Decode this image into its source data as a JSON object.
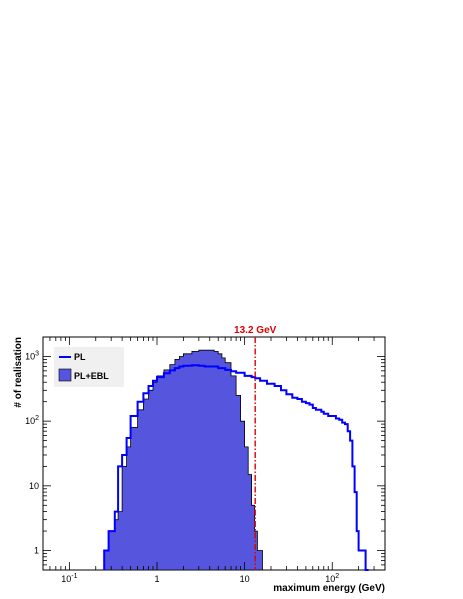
{
  "chart_data": {
    "type": "histogram",
    "title": "",
    "xlabel": "maximum energy (GeV)",
    "ylabel": "# of realisation",
    "xscale": "log",
    "yscale": "log",
    "xlim": [
      0.05,
      400
    ],
    "ylim": [
      0.5,
      2000
    ],
    "x_ticks": [
      {
        "value": 0.1,
        "label": "10",
        "exp": "-1"
      },
      {
        "value": 1,
        "label": "1",
        "exp": ""
      },
      {
        "value": 10,
        "label": "10",
        "exp": ""
      },
      {
        "value": 100,
        "label": "10",
        "exp": "2"
      }
    ],
    "y_ticks": [
      {
        "value": 1,
        "label": "1",
        "exp": ""
      },
      {
        "value": 10,
        "label": "10",
        "exp": ""
      },
      {
        "value": 100,
        "label": "10",
        "exp": "2"
      },
      {
        "value": 1000,
        "label": "10",
        "exp": "3"
      }
    ],
    "marker": {
      "x": 13.2,
      "label": "13.2 GeV",
      "color": "#dd0000",
      "style": "dash-dot"
    },
    "legend": {
      "placement": "top-left"
    },
    "series": [
      {
        "name": "PL",
        "style": "line",
        "color": "#0000ff",
        "x": [
          0.25,
          0.28,
          0.33,
          0.36,
          0.4,
          0.45,
          0.5,
          0.6,
          0.7,
          0.8,
          0.9,
          1.0,
          1.2,
          1.4,
          1.6,
          1.8,
          2.0,
          2.5,
          3.0,
          3.5,
          4.0,
          5.0,
          6.0,
          7.0,
          8.0,
          10,
          12,
          13.2,
          15,
          18,
          22,
          26,
          30,
          35,
          40,
          45,
          50,
          55,
          60,
          65,
          70,
          75,
          80,
          90,
          100,
          110,
          120,
          130,
          140,
          150,
          160,
          170,
          180,
          190,
          200,
          210,
          220,
          240
        ],
        "y": [
          1,
          2,
          4,
          20,
          30,
          55,
          120,
          200,
          270,
          350,
          420,
          480,
          550,
          610,
          660,
          700,
          720,
          730,
          720,
          700,
          700,
          660,
          620,
          590,
          560,
          500,
          480,
          460,
          420,
          380,
          350,
          300,
          260,
          230,
          220,
          200,
          190,
          180,
          160,
          150,
          150,
          140,
          130,
          120,
          120,
          110,
          105,
          95,
          90,
          70,
          50,
          20,
          8,
          2,
          1,
          1,
          1,
          0.5
        ]
      },
      {
        "name": "PL+EBL",
        "style": "filled",
        "color": "#5555dd",
        "x": [
          0.25,
          0.28,
          0.33,
          0.36,
          0.4,
          0.45,
          0.5,
          0.6,
          0.7,
          0.8,
          0.9,
          1.0,
          1.2,
          1.4,
          1.6,
          1.8,
          2.0,
          2.5,
          3.0,
          3.5,
          4.0,
          4.5,
          5.0,
          5.5,
          6.0,
          7.0,
          8.0,
          9.0,
          10,
          11,
          12,
          13,
          14,
          15,
          16
        ],
        "y": [
          1,
          2,
          3,
          4,
          20,
          40,
          80,
          150,
          220,
          300,
          400,
          500,
          620,
          750,
          900,
          1000,
          1100,
          1200,
          1250,
          1250,
          1250,
          1200,
          1100,
          950,
          800,
          500,
          250,
          100,
          40,
          15,
          5,
          2,
          1,
          1,
          0.5
        ]
      }
    ]
  }
}
